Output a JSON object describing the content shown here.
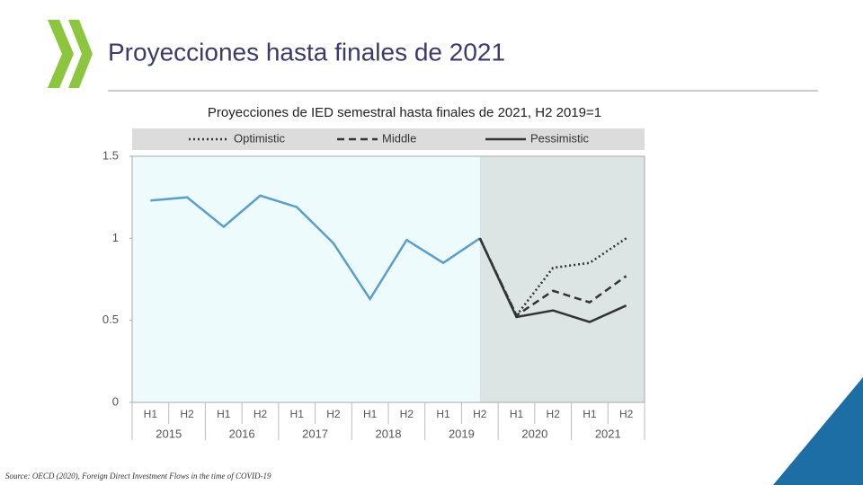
{
  "slide_title": "Proyecciones hasta finales de 2021",
  "source": "Source: OECD (2020), Foreign Direct Investment Flows in the time of COVID-19",
  "chart_data": {
    "type": "line",
    "title": "Proyecciones de IED semestral hasta finales de  2021, H2 2019=1",
    "categories": [
      "H1",
      "H2",
      "H1",
      "H2",
      "H1",
      "H2",
      "H1",
      "H2",
      "H1",
      "H2",
      "H1",
      "H2",
      "H1",
      "H2"
    ],
    "year_labels": [
      "2015",
      "2016",
      "2017",
      "2018",
      "2019",
      "2020",
      "2021"
    ],
    "ylim": [
      0,
      1.5
    ],
    "yticks": [
      0,
      0.5,
      1,
      1.5
    ],
    "series": [
      {
        "color": "#5b9ec9",
        "dash": "solid",
        "values": [
          1.23,
          1.25,
          1.07,
          1.26,
          1.19,
          0.97,
          0.63,
          0.99,
          0.85,
          1.0,
          null,
          null,
          null,
          null
        ]
      },
      {
        "name": "Optimistic",
        "color": "#333333",
        "dash": "dotted",
        "values": [
          null,
          null,
          null,
          null,
          null,
          null,
          null,
          null,
          null,
          1.0,
          0.53,
          0.82,
          0.85,
          1.0
        ]
      },
      {
        "name": "Middle",
        "color": "#333333",
        "dash": "dashed",
        "values": [
          null,
          null,
          null,
          null,
          null,
          null,
          null,
          null,
          null,
          1.0,
          0.53,
          0.68,
          0.61,
          0.77
        ]
      },
      {
        "name": "Pessimistic",
        "color": "#333333",
        "dash": "solid",
        "values": [
          null,
          null,
          null,
          null,
          null,
          null,
          null,
          null,
          null,
          1.0,
          0.52,
          0.56,
          0.49,
          0.59
        ]
      }
    ]
  }
}
